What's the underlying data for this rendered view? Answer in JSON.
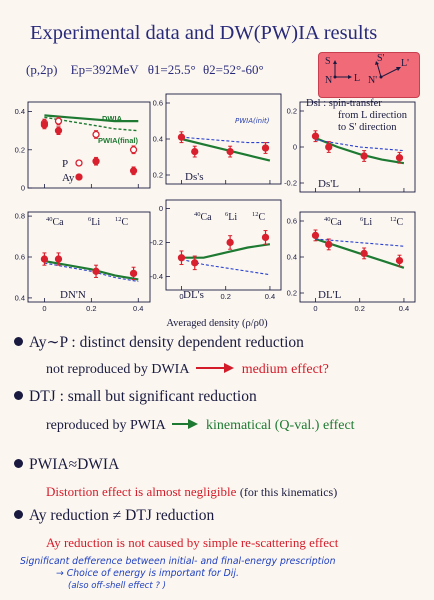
{
  "title": "Experimental data and DW(PW)IA results",
  "kinematics": {
    "reaction": "(p,2p)",
    "energy": "Ep=392MeV",
    "theta1": "θ1=25.5°",
    "theta2": "θ2=52°-60°"
  },
  "legend_box": {
    "label_L": "L",
    "label_N": "N",
    "label_S": "S",
    "label_Lprime": "L'",
    "label_Nprime": "N'",
    "label_Sprime": "S'",
    "dsl_line1": "Dsl : spin-transfer",
    "dsl_line2": "from L direction",
    "dsl_line3": "to S' direction"
  },
  "panels": {
    "ay": {
      "label_p": "P",
      "label_ay": "Ay",
      "curve_dwia": "DWIA",
      "curve_pwia": "PWIA(final)",
      "yticks": [
        "0.4",
        "0.2",
        "0"
      ]
    },
    "dss": {
      "label": "Ds's",
      "curve_pwia": "PWIA(init)",
      "yticks": [
        "0.6",
        "0.4",
        "0.2"
      ]
    },
    "dsl": {
      "label": "Ds'L",
      "yticks": [
        "0.2",
        "0",
        "-0.2"
      ]
    },
    "dnn": {
      "label": "DN'N",
      "yticks": [
        "0.8",
        "0.6",
        "0.4"
      ],
      "xticks": [
        "0",
        "0.2",
        "0.4"
      ]
    },
    "dls": {
      "label": "DL's",
      "yticks": [
        "0",
        "-0.2",
        "-0.4"
      ],
      "xticks": [
        "0",
        "0.2",
        "0.4"
      ]
    },
    "dll": {
      "label": "DL'L",
      "yticks": [
        "0.6",
        "0.4",
        "0.2"
      ],
      "xticks": [
        "0",
        "0.2",
        "0.4"
      ]
    }
  },
  "nuclei": {
    "ca": "Ca",
    "ca_mass": "40",
    "li": "Li",
    "li_mass": "6",
    "c": "C",
    "c_mass": "12"
  },
  "x_axis_label": "Averaged density (ρ/ρ0)",
  "bullets": [
    {
      "head": "Ay∼P : distinct density dependent reduction",
      "sub_dark": "not reproduced by DWIA",
      "sub_colored": "medium effect?"
    },
    {
      "head": "DTJ : small but significant reduction",
      "sub_dark": "reproduced by PWIA",
      "sub_colored": "kinematical (Q-val.) effect"
    },
    {
      "head": "PWIA≈DWIA",
      "sub_colored": "Distortion effect is almost negligible",
      "sub_note": "(for this kinematics)"
    },
    {
      "head": "Ay reduction ≠ DTJ reduction",
      "sub_colored": "Ay reduction is not caused by simple re-scattering effect"
    }
  ],
  "handwritten": {
    "line1": "Significant defference between initial- and final-energy prescription",
    "line2": "→ Choice of energy is important for Dij.",
    "line3": "(also off-shell effect ? )"
  },
  "chart_data": [
    {
      "type": "scatter",
      "panel": "Ay / P",
      "xlabel": "Averaged density (ρ/ρ0)",
      "ylim": [
        0,
        0.45
      ],
      "series": [
        {
          "name": "P",
          "x": [
            0.0,
            0.06,
            0.22,
            0.38
          ],
          "y": [
            0.34,
            0.35,
            0.28,
            0.2
          ],
          "err": [
            0.02,
            0.02,
            0.02,
            0.02
          ]
        },
        {
          "name": "Ay",
          "x": [
            0.0,
            0.06,
            0.22,
            0.38
          ],
          "y": [
            0.33,
            0.3,
            0.14,
            0.09
          ],
          "err": [
            0.02,
            0.02,
            0.02,
            0.02
          ]
        },
        {
          "name": "DWIA",
          "x": [
            0.0,
            0.1,
            0.2,
            0.3,
            0.4
          ],
          "y": [
            0.38,
            0.37,
            0.36,
            0.35,
            0.35
          ]
        },
        {
          "name": "PWIA(final)",
          "x": [
            0.0,
            0.1,
            0.2,
            0.3,
            0.4
          ],
          "y": [
            0.37,
            0.35,
            0.33,
            0.31,
            0.3
          ]
        }
      ]
    },
    {
      "type": "scatter",
      "panel": "Ds's",
      "ylim": [
        0.15,
        0.65
      ],
      "series": [
        {
          "name": "data",
          "x": [
            0.0,
            0.06,
            0.22,
            0.38
          ],
          "y": [
            0.41,
            0.33,
            0.33,
            0.35
          ],
          "err": [
            0.03,
            0.03,
            0.03,
            0.03
          ]
        },
        {
          "name": "DWIA",
          "x": [
            0.0,
            0.1,
            0.2,
            0.3,
            0.4
          ],
          "y": [
            0.4,
            0.37,
            0.34,
            0.31,
            0.28
          ]
        },
        {
          "name": "PWIA(init)",
          "x": [
            0.0,
            0.1,
            0.2,
            0.3,
            0.4
          ],
          "y": [
            0.41,
            0.4,
            0.39,
            0.38,
            0.38
          ]
        }
      ]
    },
    {
      "type": "scatter",
      "panel": "Ds'L",
      "ylim": [
        -0.25,
        0.25
      ],
      "series": [
        {
          "name": "data",
          "x": [
            0.0,
            0.06,
            0.22,
            0.38
          ],
          "y": [
            0.06,
            0.0,
            -0.05,
            -0.06
          ],
          "err": [
            0.03,
            0.03,
            0.03,
            0.03
          ]
        },
        {
          "name": "DWIA",
          "x": [
            0.0,
            0.1,
            0.2,
            0.3,
            0.4
          ],
          "y": [
            0.05,
            0.0,
            -0.04,
            -0.07,
            -0.09
          ]
        },
        {
          "name": "PWIA",
          "x": [
            0.0,
            0.1,
            0.2,
            0.3,
            0.4
          ],
          "y": [
            0.04,
            0.02,
            0.0,
            -0.01,
            -0.02
          ]
        }
      ]
    },
    {
      "type": "scatter",
      "panel": "DN'N",
      "ylim": [
        0.38,
        0.82
      ],
      "series": [
        {
          "name": "data",
          "x": [
            0.0,
            0.06,
            0.22,
            0.38
          ],
          "y": [
            0.59,
            0.59,
            0.53,
            0.52
          ],
          "err": [
            0.03,
            0.03,
            0.03,
            0.03
          ]
        },
        {
          "name": "DWIA",
          "x": [
            0.0,
            0.1,
            0.2,
            0.3,
            0.4
          ],
          "y": [
            0.58,
            0.56,
            0.54,
            0.51,
            0.49
          ]
        },
        {
          "name": "PWIA",
          "x": [
            0.0,
            0.1,
            0.2,
            0.3,
            0.4
          ],
          "y": [
            0.57,
            0.55,
            0.53,
            0.5,
            0.48
          ]
        }
      ]
    },
    {
      "type": "scatter",
      "panel": "DL's",
      "ylim": [
        -0.48,
        0.05
      ],
      "series": [
        {
          "name": "data",
          "x": [
            0.0,
            0.06,
            0.22,
            0.38
          ],
          "y": [
            -0.29,
            -0.32,
            -0.2,
            -0.17
          ],
          "err": [
            0.04,
            0.04,
            0.04,
            0.04
          ]
        },
        {
          "name": "DWIA",
          "x": [
            0.0,
            0.1,
            0.2,
            0.3,
            0.4
          ],
          "y": [
            -0.29,
            -0.29,
            -0.26,
            -0.23,
            -0.21
          ]
        },
        {
          "name": "PWIA",
          "x": [
            0.0,
            0.1,
            0.2,
            0.3,
            0.4
          ],
          "y": [
            -0.3,
            -0.33,
            -0.35,
            -0.37,
            -0.39
          ]
        }
      ]
    },
    {
      "type": "scatter",
      "panel": "DL'L",
      "ylim": [
        0.15,
        0.65
      ],
      "series": [
        {
          "name": "data",
          "x": [
            0.0,
            0.06,
            0.22,
            0.38
          ],
          "y": [
            0.52,
            0.47,
            0.42,
            0.38
          ],
          "err": [
            0.03,
            0.03,
            0.03,
            0.03
          ]
        },
        {
          "name": "DWIA",
          "x": [
            0.0,
            0.1,
            0.2,
            0.3,
            0.4
          ],
          "y": [
            0.5,
            0.46,
            0.42,
            0.38,
            0.34
          ]
        },
        {
          "name": "PWIA",
          "x": [
            0.0,
            0.1,
            0.2,
            0.3,
            0.4
          ],
          "y": [
            0.5,
            0.49,
            0.48,
            0.47,
            0.46
          ]
        }
      ]
    }
  ]
}
